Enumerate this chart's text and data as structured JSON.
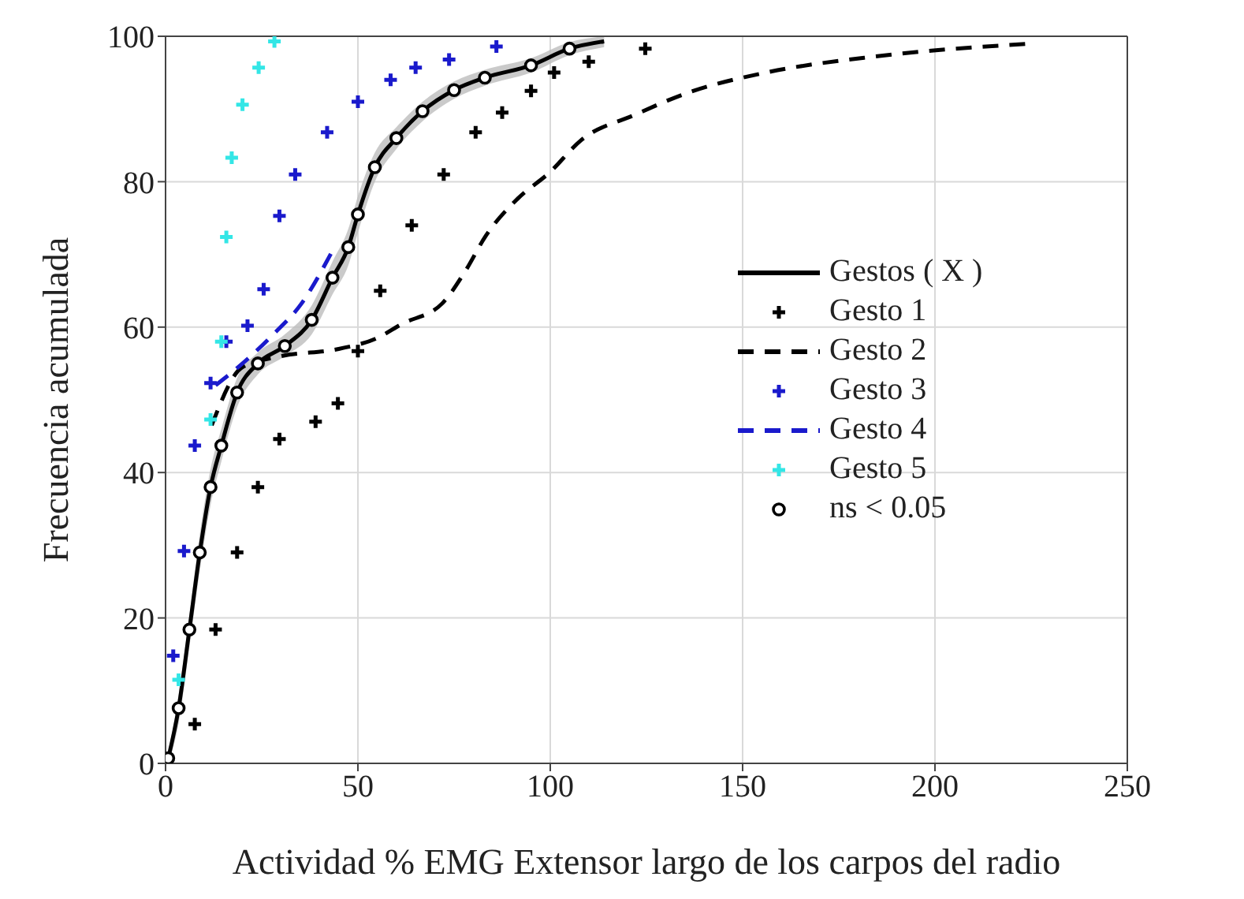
{
  "chart_data": {
    "type": "line",
    "xlabel": "Actividad % EMG Extensor largo de los carpos del radio",
    "ylabel": "Frecuencia acumulada",
    "xlim": [
      0,
      250
    ],
    "xticks": [
      0,
      50,
      100,
      150,
      200,
      250
    ],
    "ylim": [
      0,
      100
    ],
    "yticks": [
      0,
      20,
      40,
      60,
      80,
      100
    ],
    "grid": true,
    "legend": "right",
    "series": [
      {
        "name": "Gestos ( X )",
        "color": "#000000",
        "line_style": "solid",
        "marker": "none",
        "x": [
          0.7,
          3.4,
          6.2,
          8.9,
          11.7,
          14.5,
          18.6,
          24,
          31,
          38,
          43.4,
          47.5,
          50,
          54.4,
          60,
          66.8,
          75,
          83,
          95,
          105,
          114
        ],
        "values": [
          0.7,
          7.6,
          18.4,
          29,
          38,
          43.7,
          51,
          55,
          57.4,
          61,
          66.8,
          71,
          75.5,
          82,
          86,
          89.7,
          92.6,
          94.3,
          96,
          98.3,
          99.3
        ],
        "lower": [
          0,
          5.5,
          16,
          26.5,
          35.5,
          41.5,
          49,
          53.5,
          56,
          59,
          64.5,
          68.5,
          73,
          80,
          84.5,
          88.3,
          91.4,
          93.2,
          95,
          97.4,
          98.5
        ],
        "upper": [
          1.5,
          9.5,
          20.5,
          31.5,
          40.5,
          46,
          53,
          56.5,
          59,
          63,
          69,
          73.5,
          78,
          84,
          87.5,
          91,
          93.8,
          95.4,
          97,
          99.2,
          100
        ]
      },
      {
        "name": "Gesto 1",
        "type": "scatter",
        "color": "#000000",
        "marker": "cross",
        "x": [
          7.6,
          13,
          18.6,
          24,
          29.6,
          39,
          44.8,
          50,
          55.8,
          64,
          72.3,
          80.6,
          87.5,
          95,
          101,
          110,
          124.7
        ],
        "values": [
          5.4,
          18.4,
          29,
          38,
          44.6,
          47,
          49.5,
          56.7,
          65,
          74,
          81,
          86.8,
          89.5,
          92.5,
          95,
          96.5,
          98.3
        ]
      },
      {
        "name": "Gesto 2",
        "color": "#000000",
        "line_style": "dashed",
        "marker": "none",
        "x": [
          12,
          20,
          30,
          45,
          55,
          61.3,
          72,
          77.8,
          83.3,
          91.6,
          99.9,
          108,
          122,
          135.6,
          156,
          184,
          225
        ],
        "values": [
          46.5,
          54.5,
          56,
          57,
          58.5,
          60.4,
          63.3,
          67.6,
          72.6,
          77.7,
          81.3,
          85.7,
          89.2,
          92.2,
          95,
          97.2,
          99
        ]
      },
      {
        "name": "Gesto 3",
        "type": "scatter",
        "color": "#1a1acc",
        "marker": "cross",
        "x": [
          2,
          4.8,
          7.6,
          11.7,
          15.8,
          21.3,
          25.5,
          29.6,
          33.7,
          42,
          50,
          58.5,
          65,
          73.7,
          86
        ],
        "values": [
          14.8,
          29.2,
          43.7,
          52.3,
          58,
          60.2,
          65.2,
          75.3,
          81,
          86.8,
          91,
          94,
          95.7,
          96.8,
          98.6
        ]
      },
      {
        "name": "Gesto 4",
        "color": "#1a1acc",
        "line_style": "dashed",
        "marker": "none",
        "x": [
          13,
          20,
          28,
          35,
          43.4
        ],
        "values": [
          52,
          55,
          59,
          63,
          70.5
        ]
      },
      {
        "name": "Gesto 5",
        "type": "scatter",
        "color": "#33e6e6",
        "marker": "cross",
        "x": [
          3.4,
          11.7,
          14.5,
          15.8,
          17.2,
          20,
          24.2,
          28.3
        ],
        "values": [
          11.5,
          47.3,
          58,
          72.4,
          83.3,
          90.6,
          95.7,
          99.3
        ]
      },
      {
        "name": "ns < 0.05",
        "type": "scatter",
        "color": "#000000",
        "marker": "circle",
        "x": [
          0.7,
          3.4,
          6.2,
          8.9,
          11.7,
          14.5,
          18.6,
          24,
          31,
          38,
          43.4,
          47.5,
          50,
          54.4,
          60,
          66.8,
          75,
          83,
          95,
          105
        ],
        "values": [
          0.7,
          7.6,
          18.4,
          29,
          38,
          43.7,
          51,
          55,
          57.4,
          61,
          66.8,
          71,
          75.5,
          82,
          86,
          89.7,
          92.6,
          94.3,
          96,
          98.3
        ]
      }
    ]
  }
}
